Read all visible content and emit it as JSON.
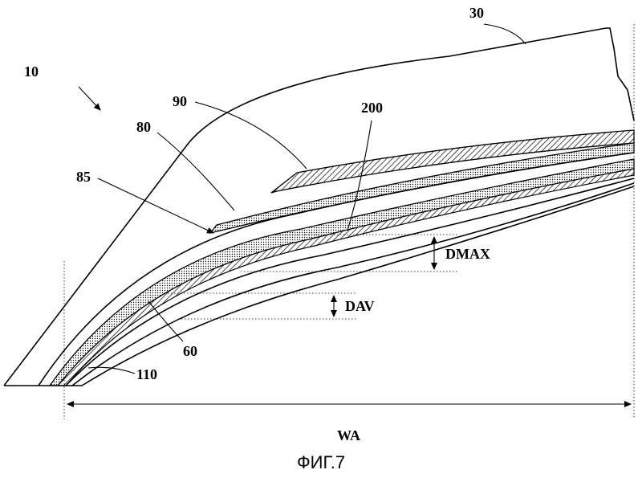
{
  "labels": {
    "tread": "30",
    "tire": "10",
    "layer_90": "90",
    "layer_80": "80",
    "region_200": "200",
    "edge_85": "85",
    "dmax": "DMAX",
    "dav": "DAV",
    "layer_60": "60",
    "layer_110": "110",
    "width": "WA"
  },
  "caption": "ФИГ.7"
}
